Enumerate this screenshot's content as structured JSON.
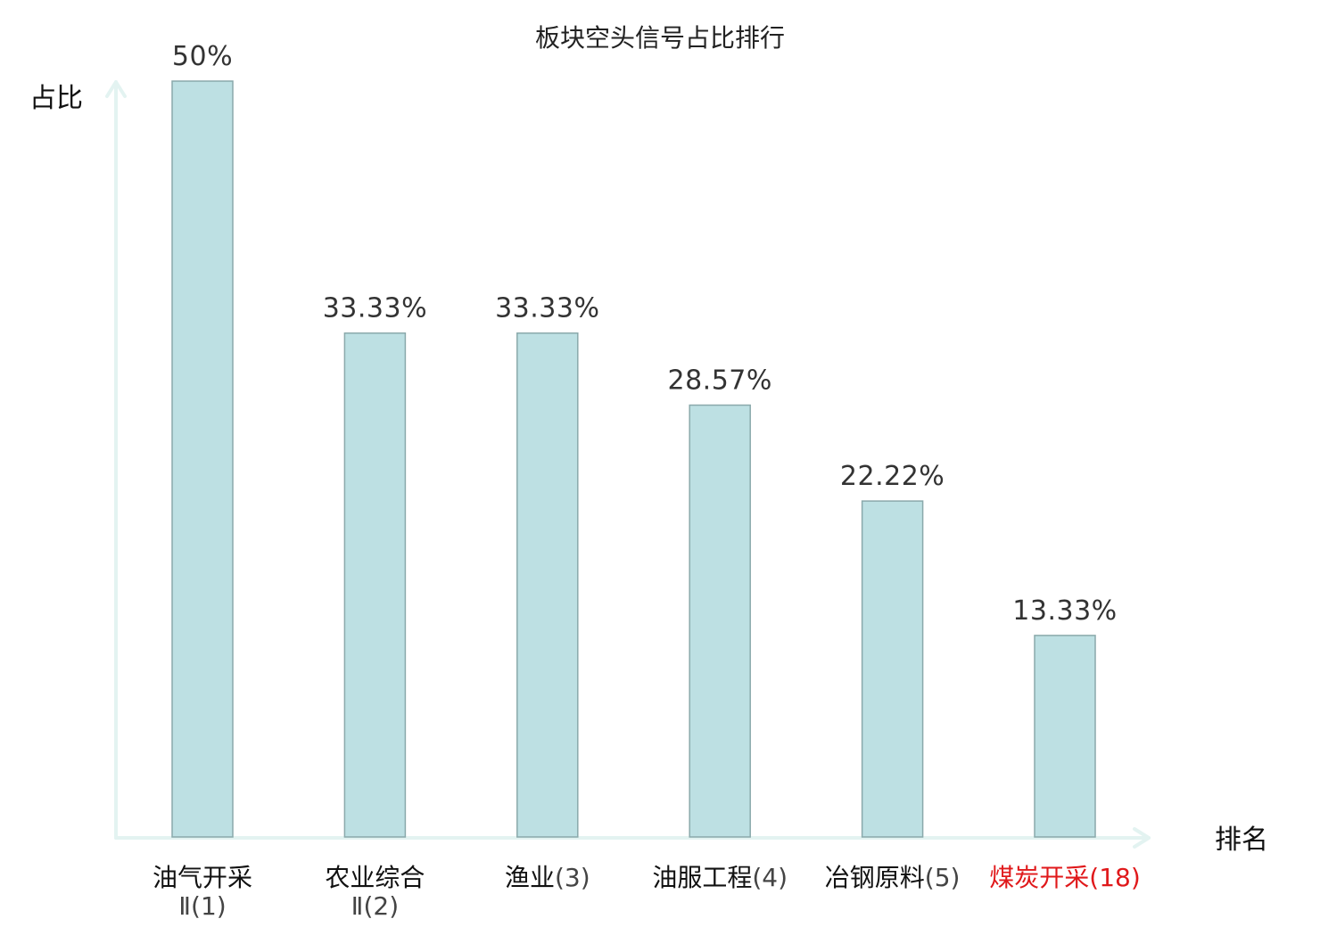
{
  "chart_data": {
    "type": "bar",
    "title": "板块空头信号占比排行",
    "xlabel": "排名",
    "ylabel": "占比",
    "ylim": [
      0,
      50
    ],
    "grid": false,
    "legend": "none",
    "categories": [
      {
        "name": "油气开采",
        "rank_text": "Ⅱ(1)",
        "value": 50,
        "label": "50%",
        "highlight": false
      },
      {
        "name": "农业综合",
        "rank_text": "Ⅱ(2)",
        "value": 33.33,
        "label": "33.33%",
        "highlight": false
      },
      {
        "name": "渔业",
        "rank_text": "(3)",
        "value": 33.33,
        "label": "33.33%",
        "highlight": false
      },
      {
        "name": "油服工程",
        "rank_text": "(4)",
        "value": 28.57,
        "label": "28.57%",
        "highlight": false
      },
      {
        "name": "冶钢原料",
        "rank_text": "(5)",
        "value": 22.22,
        "label": "22.22%",
        "highlight": false
      },
      {
        "name": "煤炭开采",
        "rank_text": "(18)",
        "value": 13.33,
        "label": "13.33%",
        "highlight": true
      }
    ],
    "colors": {
      "bar_fill": "#bde0e3",
      "bar_stroke": "#8aa9ab",
      "axis": "#e3f3f1",
      "highlight_text": "#e0191b"
    }
  }
}
